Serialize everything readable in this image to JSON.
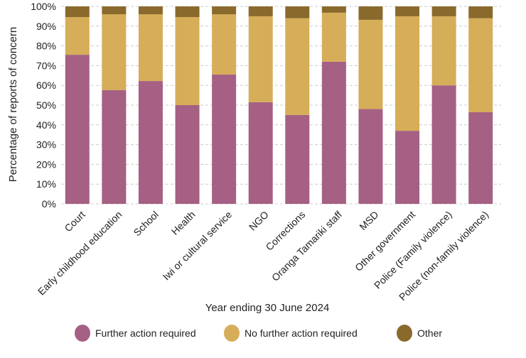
{
  "chart_data": {
    "type": "bar",
    "stacked": true,
    "title": "",
    "xlabel": "Year ending 30 June 2024",
    "ylabel": "Percentage of reports of concern",
    "ylim": [
      0,
      100
    ],
    "yticks": [
      "0%",
      "10%",
      "20%",
      "30%",
      "40%",
      "50%",
      "60%",
      "70%",
      "80%",
      "90%",
      "100%"
    ],
    "grid": true,
    "legend_position": "bottom",
    "categories": [
      "Court",
      "Early childhood education",
      "School",
      "Health",
      "Iwi or cultural service",
      "NGO",
      "Corrections",
      "Oranga Tamariki staff",
      "MSD",
      "Other government",
      "Police (Family violence)",
      "Police (non-family violence)"
    ],
    "series": [
      {
        "name": "Further action required",
        "color": "#a56083",
        "values": [
          75.5,
          57.6,
          62.2,
          50.0,
          65.5,
          51.5,
          45.0,
          72.0,
          48.0,
          37.0,
          60.0,
          46.4
        ]
      },
      {
        "name": "No further action required",
        "color": "#d6ad58",
        "values": [
          19.1,
          38.4,
          33.8,
          44.6,
          30.5,
          43.5,
          49.0,
          24.8,
          45.2,
          58.0,
          35.0,
          47.6
        ]
      },
      {
        "name": "Other",
        "color": "#8a6a2c",
        "values": [
          5.4,
          4.0,
          4.0,
          5.4,
          4.0,
          5.0,
          6.0,
          3.2,
          6.8,
          5.0,
          5.0,
          6.0
        ]
      }
    ]
  }
}
